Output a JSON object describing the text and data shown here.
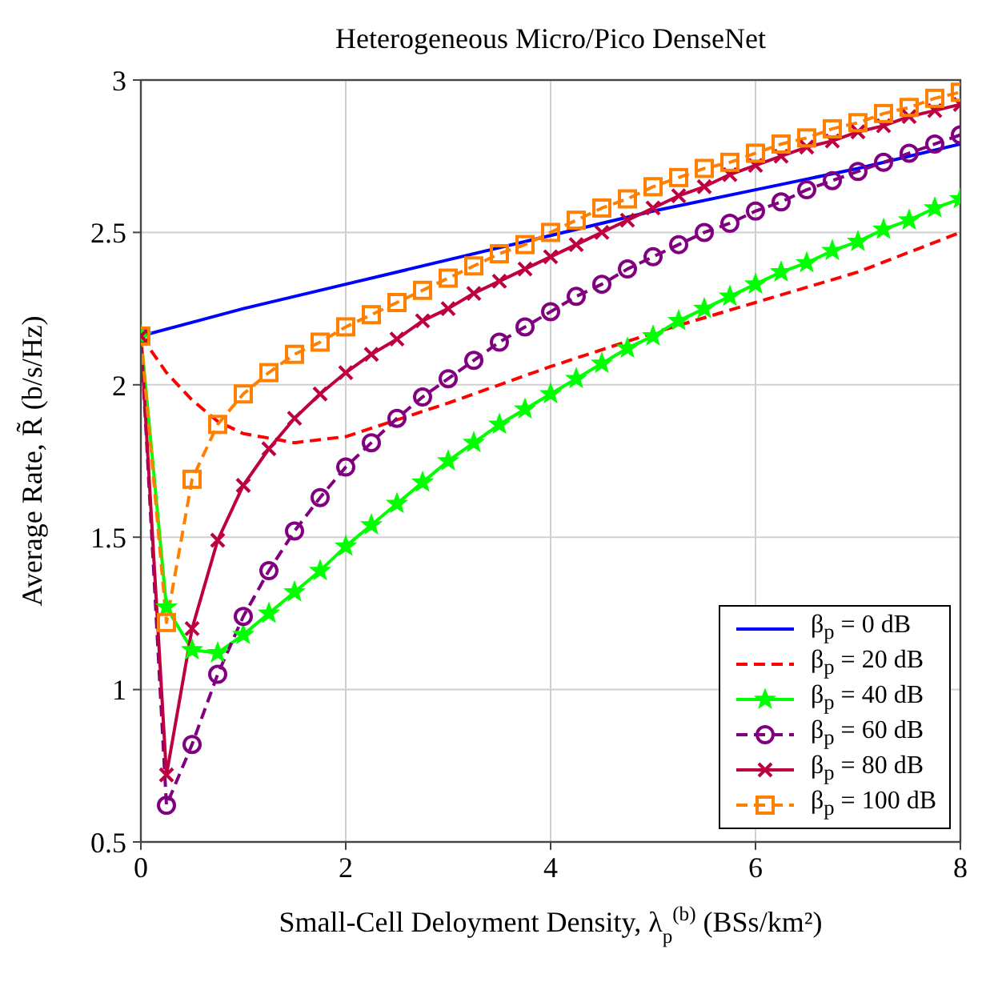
{
  "chart_data": {
    "type": "line",
    "title": "Heterogeneous Micro/Pico DenseNet",
    "xlabel": "Small-Cell Deloyment Density, λ$_{p}$$^{(b)}$ (BSs/km²)",
    "ylabel": "Average Rate, R̃ (b/s/Hz)",
    "xlim": [
      0,
      8
    ],
    "xticks": [
      0,
      2,
      4,
      6,
      8
    ],
    "ylim": [
      0.5,
      3
    ],
    "yticks": [
      0.5,
      1,
      1.5,
      2,
      2.5,
      3
    ],
    "grid": true,
    "legend": "bottom right",
    "x": [
      0,
      0.25,
      0.5,
      0.75,
      1,
      1.25,
      1.5,
      1.75,
      2,
      2.25,
      2.5,
      2.75,
      3,
      3.25,
      3.5,
      3.75,
      4,
      4.25,
      4.5,
      4.75,
      5,
      5.25,
      5.5,
      5.75,
      6,
      6.25,
      6.5,
      6.75,
      7,
      7.25,
      7.5,
      7.75,
      8
    ],
    "series": [
      {
        "name": "β$_{p}$ = 0 dB",
        "color": "#0000ff",
        "line_style": "solid",
        "marker": "none",
        "x": [
          0,
          1,
          2,
          3,
          4,
          5,
          6,
          7,
          8
        ],
        "values": [
          2.16,
          2.25,
          2.33,
          2.41,
          2.49,
          2.57,
          2.64,
          2.71,
          2.79
        ]
      },
      {
        "name": "β$_{p}$ = 20 dB",
        "color": "#ff0000",
        "line_style": "dashed",
        "marker": "none",
        "x": [
          0,
          0.25,
          0.5,
          0.75,
          1,
          1.5,
          2,
          3,
          4,
          5,
          6,
          7,
          8
        ],
        "values": [
          2.16,
          2.04,
          1.95,
          1.88,
          1.84,
          1.81,
          1.83,
          1.94,
          2.06,
          2.17,
          2.27,
          2.37,
          2.5
        ]
      },
      {
        "name": "β$_{p}$ = 40 dB",
        "color": "#00ff00",
        "line_style": "solid",
        "marker": "star",
        "values": [
          2.16,
          1.27,
          1.13,
          1.12,
          1.18,
          1.25,
          1.32,
          1.39,
          1.47,
          1.54,
          1.61,
          1.68,
          1.75,
          1.81,
          1.87,
          1.92,
          1.97,
          2.02,
          2.07,
          2.12,
          2.16,
          2.21,
          2.25,
          2.29,
          2.33,
          2.37,
          2.4,
          2.44,
          2.47,
          2.51,
          2.54,
          2.58,
          2.61
        ]
      },
      {
        "name": "β$_{p}$ = 60 dB",
        "color": "#800080",
        "line_style": "dashed",
        "marker": "circle",
        "values": [
          2.16,
          0.62,
          0.82,
          1.05,
          1.24,
          1.39,
          1.52,
          1.63,
          1.73,
          1.81,
          1.89,
          1.96,
          2.02,
          2.08,
          2.14,
          2.19,
          2.24,
          2.29,
          2.33,
          2.38,
          2.42,
          2.46,
          2.5,
          2.53,
          2.57,
          2.6,
          2.64,
          2.67,
          2.7,
          2.73,
          2.76,
          2.79,
          2.82
        ]
      },
      {
        "name": "β$_{p}$ = 80 dB",
        "color": "#bf0040",
        "line_style": "solid",
        "marker": "cross",
        "values": [
          2.16,
          0.72,
          1.2,
          1.49,
          1.67,
          1.79,
          1.89,
          1.97,
          2.04,
          2.1,
          2.15,
          2.21,
          2.25,
          2.3,
          2.34,
          2.38,
          2.42,
          2.46,
          2.5,
          2.54,
          2.58,
          2.62,
          2.65,
          2.69,
          2.72,
          2.75,
          2.78,
          2.8,
          2.83,
          2.85,
          2.88,
          2.9,
          2.92
        ]
      },
      {
        "name": "β$_{p}$ = 100 dB",
        "color": "#ff8000",
        "line_style": "dashed",
        "marker": "square",
        "values": [
          2.16,
          1.22,
          1.69,
          1.87,
          1.97,
          2.04,
          2.1,
          2.14,
          2.19,
          2.23,
          2.27,
          2.31,
          2.35,
          2.39,
          2.43,
          2.46,
          2.5,
          2.54,
          2.58,
          2.61,
          2.65,
          2.68,
          2.71,
          2.73,
          2.76,
          2.79,
          2.81,
          2.84,
          2.86,
          2.89,
          2.91,
          2.94,
          2.96
        ]
      }
    ]
  }
}
